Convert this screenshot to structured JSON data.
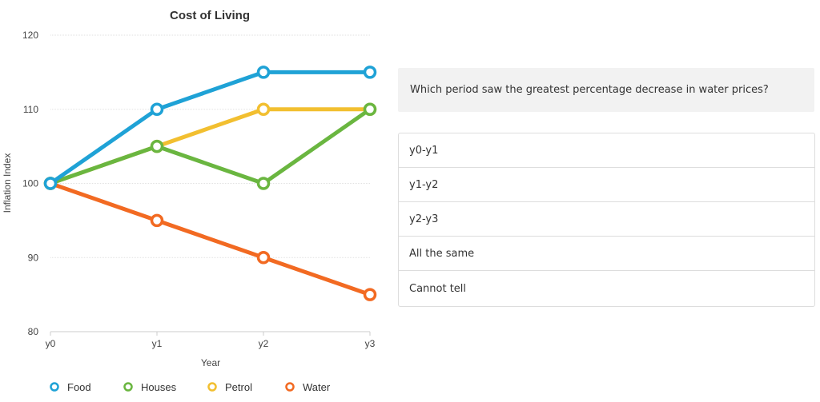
{
  "question": {
    "text": "Which period saw the greatest percentage decrease in water prices?"
  },
  "options": [
    {
      "label": "y0-y1"
    },
    {
      "label": "y1-y2"
    },
    {
      "label": "y2-y3"
    },
    {
      "label": "All the same"
    },
    {
      "label": "Cannot tell"
    }
  ],
  "chart_data": {
    "type": "line",
    "title": "Cost of Living",
    "xlabel": "Year",
    "ylabel": "Inflation Index",
    "categories": [
      "y0",
      "y1",
      "y2",
      "y3"
    ],
    "ylim": [
      80,
      120
    ],
    "yticks": [
      80,
      90,
      100,
      110,
      120
    ],
    "grid": true,
    "legend_position": "bottom",
    "series": [
      {
        "name": "Food",
        "color": "#1fa2d6",
        "values": [
          100,
          110,
          115,
          115
        ]
      },
      {
        "name": "Houses",
        "color": "#6ab640",
        "values": [
          100,
          105,
          100,
          110
        ]
      },
      {
        "name": "Petrol",
        "color": "#f2bf30",
        "values": [
          100,
          105,
          110,
          110
        ]
      },
      {
        "name": "Water",
        "color": "#f26a22",
        "values": [
          100,
          95,
          90,
          85
        ]
      }
    ]
  }
}
